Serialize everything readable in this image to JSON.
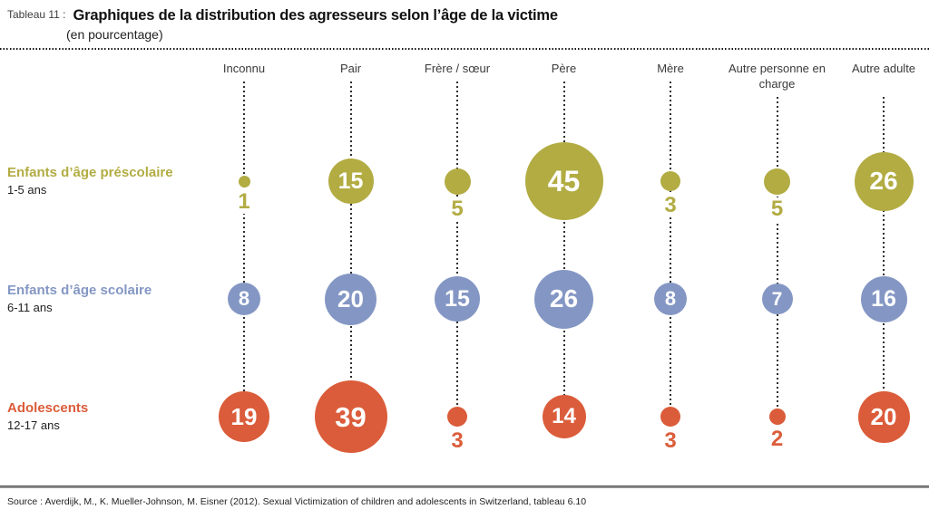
{
  "header": {
    "table_label": "Tableau 11 :",
    "title": "Graphiques de la distribution des agresseurs selon l’âge de la victime",
    "subtitle": "(en pourcentage)"
  },
  "chart_data": {
    "type": "bubble",
    "unit": "pourcentage",
    "title": "Graphiques de la distribution des agresseurs selon l’âge de la victime",
    "categories": [
      "Inconnu",
      "Pair",
      "Frère / sœur",
      "Père",
      "Mère",
      "Autre personne en charge",
      "Autre adulte"
    ],
    "series": [
      {
        "name": "Enfants d’âge préscolaire",
        "age_range": "1-5 ans",
        "color": "#b2ac43",
        "values": [
          1,
          15,
          5,
          45,
          3,
          5,
          26
        ]
      },
      {
        "name": "Enfants d’âge scolaire",
        "age_range": "6-11 ans",
        "color": "#8497c4",
        "values": [
          8,
          20,
          15,
          26,
          8,
          7,
          16
        ]
      },
      {
        "name": "Adolescents",
        "age_range": "12-17 ans",
        "color": "#db5c3a",
        "values": [
          19,
          39,
          3,
          14,
          3,
          2,
          20
        ]
      }
    ],
    "label_inside_threshold": 7,
    "bubble_scale": "diameter_px = 12.8 * sqrt(value)"
  },
  "source": "Source : Averdijk, M., K. Mueller-Johnson, M. Eisner (2012). Sexual Victimization of children and adolescents in Switzerland, tableau 6.10"
}
